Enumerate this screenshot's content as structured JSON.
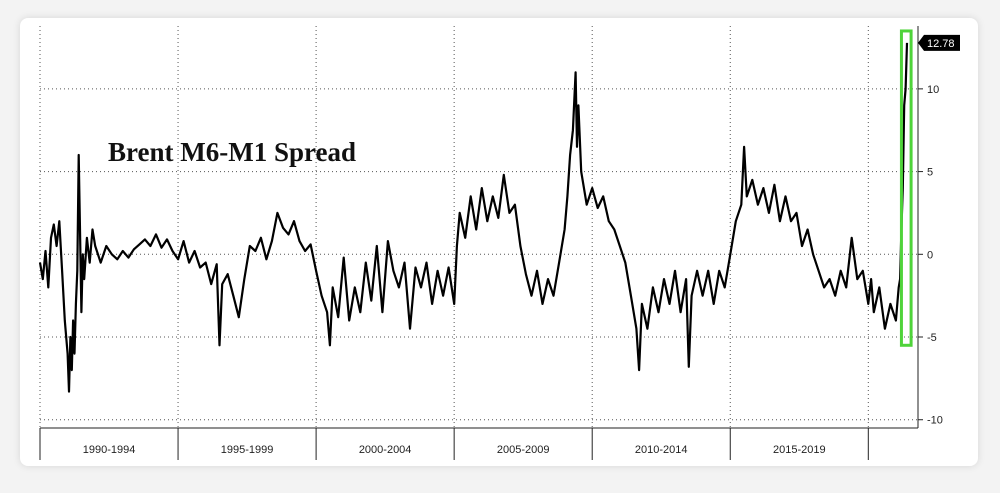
{
  "chart_data": {
    "type": "line",
    "title": "Brent M6-M1 Spread",
    "xlabel": "",
    "ylabel": "",
    "xlim": [
      1989,
      2020.8
    ],
    "ylim": [
      -10.5,
      13.8
    ],
    "y_ticks": [
      10,
      5,
      0,
      -5,
      -10
    ],
    "y_tick_labels": [
      "10",
      "5",
      "0",
      "-5",
      "-10"
    ],
    "x_periods": [
      {
        "label": "1990-1994",
        "start": 1989.0,
        "end": 1994.0
      },
      {
        "label": "1995-1999",
        "start": 1994.0,
        "end": 1999.0
      },
      {
        "label": "2000-2004",
        "start": 1999.0,
        "end": 2004.0
      },
      {
        "label": "2005-2009",
        "start": 2004.0,
        "end": 2009.0
      },
      {
        "label": "2010-2014",
        "start": 2009.0,
        "end": 2014.0
      },
      {
        "label": "2015-2019",
        "start": 2014.0,
        "end": 2019.0
      }
    ],
    "grid": true,
    "legend": "none",
    "line_color": "#000000",
    "highlight_color": "#4fd33a",
    "highlight_range": {
      "x": [
        2020.2,
        2020.55
      ],
      "y": [
        -5.5,
        13.5
      ]
    },
    "last_value_label": "12.78",
    "series": [
      {
        "points": [
          [
            1989.0,
            -0.5
          ],
          [
            1989.1,
            -1.5
          ],
          [
            1989.2,
            0.2
          ],
          [
            1989.3,
            -2.0
          ],
          [
            1989.4,
            1.0
          ],
          [
            1989.5,
            1.8
          ],
          [
            1989.6,
            0.5
          ],
          [
            1989.7,
            2.0
          ],
          [
            1989.8,
            -1.0
          ],
          [
            1989.9,
            -4.0
          ],
          [
            1990.0,
            -6.0
          ],
          [
            1990.05,
            -8.3
          ],
          [
            1990.1,
            -5.0
          ],
          [
            1990.15,
            -7.0
          ],
          [
            1990.2,
            -4.0
          ],
          [
            1990.25,
            -6.0
          ],
          [
            1990.3,
            -3.0
          ],
          [
            1990.35,
            -1.0
          ],
          [
            1990.4,
            6.0
          ],
          [
            1990.45,
            1.5
          ],
          [
            1990.5,
            -3.5
          ],
          [
            1990.55,
            0.0
          ],
          [
            1990.6,
            -1.5
          ],
          [
            1990.7,
            1.0
          ],
          [
            1990.8,
            -0.5
          ],
          [
            1990.9,
            1.5
          ],
          [
            1991.0,
            0.5
          ],
          [
            1991.2,
            -0.5
          ],
          [
            1991.4,
            0.5
          ],
          [
            1991.6,
            0.0
          ],
          [
            1991.8,
            -0.3
          ],
          [
            1992.0,
            0.2
          ],
          [
            1992.2,
            -0.2
          ],
          [
            1992.4,
            0.3
          ],
          [
            1992.6,
            0.6
          ],
          [
            1992.8,
            0.9
          ],
          [
            1993.0,
            0.5
          ],
          [
            1993.2,
            1.2
          ],
          [
            1993.4,
            0.4
          ],
          [
            1993.6,
            0.9
          ],
          [
            1993.8,
            0.2
          ],
          [
            1994.0,
            -0.3
          ],
          [
            1994.2,
            0.8
          ],
          [
            1994.4,
            -0.5
          ],
          [
            1994.6,
            0.2
          ],
          [
            1994.8,
            -0.8
          ],
          [
            1995.0,
            -0.5
          ],
          [
            1995.2,
            -1.8
          ],
          [
            1995.4,
            -0.6
          ],
          [
            1995.5,
            -5.5
          ],
          [
            1995.6,
            -1.8
          ],
          [
            1995.8,
            -1.2
          ],
          [
            1996.0,
            -2.5
          ],
          [
            1996.2,
            -3.8
          ],
          [
            1996.4,
            -1.5
          ],
          [
            1996.6,
            0.5
          ],
          [
            1996.8,
            0.2
          ],
          [
            1997.0,
            1.0
          ],
          [
            1997.2,
            -0.3
          ],
          [
            1997.4,
            0.8
          ],
          [
            1997.6,
            2.5
          ],
          [
            1997.8,
            1.6
          ],
          [
            1998.0,
            1.2
          ],
          [
            1998.2,
            2.0
          ],
          [
            1998.4,
            0.8
          ],
          [
            1998.6,
            0.2
          ],
          [
            1998.8,
            0.6
          ],
          [
            1999.0,
            -1.0
          ],
          [
            1999.2,
            -2.5
          ],
          [
            1999.4,
            -3.5
          ],
          [
            1999.5,
            -5.5
          ],
          [
            1999.6,
            -2.0
          ],
          [
            1999.8,
            -3.8
          ],
          [
            2000.0,
            -0.2
          ],
          [
            2000.2,
            -4.0
          ],
          [
            2000.4,
            -2.0
          ],
          [
            2000.6,
            -3.5
          ],
          [
            2000.8,
            -0.5
          ],
          [
            2001.0,
            -2.8
          ],
          [
            2001.2,
            0.5
          ],
          [
            2001.4,
            -3.5
          ],
          [
            2001.6,
            0.8
          ],
          [
            2001.8,
            -1.0
          ],
          [
            2002.0,
            -2.0
          ],
          [
            2002.2,
            -0.5
          ],
          [
            2002.4,
            -4.5
          ],
          [
            2002.6,
            -0.8
          ],
          [
            2002.8,
            -2.0
          ],
          [
            2003.0,
            -0.5
          ],
          [
            2003.2,
            -3.0
          ],
          [
            2003.4,
            -1.0
          ],
          [
            2003.6,
            -2.5
          ],
          [
            2003.8,
            -0.8
          ],
          [
            2004.0,
            -3.0
          ],
          [
            2004.1,
            0.5
          ],
          [
            2004.2,
            2.5
          ],
          [
            2004.4,
            1.0
          ],
          [
            2004.6,
            3.5
          ],
          [
            2004.8,
            1.5
          ],
          [
            2005.0,
            4.0
          ],
          [
            2005.2,
            2.0
          ],
          [
            2005.4,
            3.5
          ],
          [
            2005.6,
            2.2
          ],
          [
            2005.8,
            4.8
          ],
          [
            2006.0,
            2.5
          ],
          [
            2006.2,
            3.0
          ],
          [
            2006.4,
            0.5
          ],
          [
            2006.6,
            -1.2
          ],
          [
            2006.8,
            -2.5
          ],
          [
            2007.0,
            -1.0
          ],
          [
            2007.2,
            -3.0
          ],
          [
            2007.4,
            -1.5
          ],
          [
            2007.6,
            -2.5
          ],
          [
            2007.8,
            -0.5
          ],
          [
            2008.0,
            1.5
          ],
          [
            2008.1,
            3.5
          ],
          [
            2008.2,
            6.0
          ],
          [
            2008.3,
            7.5
          ],
          [
            2008.4,
            11.0
          ],
          [
            2008.45,
            6.5
          ],
          [
            2008.5,
            9.0
          ],
          [
            2008.6,
            5.0
          ],
          [
            2008.8,
            3.0
          ],
          [
            2009.0,
            4.0
          ],
          [
            2009.2,
            2.8
          ],
          [
            2009.4,
            3.5
          ],
          [
            2009.6,
            2.0
          ],
          [
            2009.8,
            1.5
          ],
          [
            2010.0,
            0.5
          ],
          [
            2010.2,
            -0.5
          ],
          [
            2010.4,
            -2.5
          ],
          [
            2010.6,
            -4.5
          ],
          [
            2010.7,
            -7.0
          ],
          [
            2010.8,
            -3.0
          ],
          [
            2011.0,
            -4.5
          ],
          [
            2011.2,
            -2.0
          ],
          [
            2011.4,
            -3.5
          ],
          [
            2011.6,
            -1.5
          ],
          [
            2011.8,
            -3.0
          ],
          [
            2012.0,
            -1.0
          ],
          [
            2012.2,
            -3.5
          ],
          [
            2012.4,
            -1.5
          ],
          [
            2012.5,
            -6.8
          ],
          [
            2012.6,
            -2.5
          ],
          [
            2012.8,
            -1.0
          ],
          [
            2013.0,
            -2.5
          ],
          [
            2013.2,
            -1.0
          ],
          [
            2013.4,
            -3.0
          ],
          [
            2013.6,
            -1.0
          ],
          [
            2013.8,
            -2.0
          ],
          [
            2014.0,
            0.0
          ],
          [
            2014.2,
            2.0
          ],
          [
            2014.4,
            3.0
          ],
          [
            2014.5,
            6.5
          ],
          [
            2014.6,
            3.5
          ],
          [
            2014.8,
            4.5
          ],
          [
            2015.0,
            3.0
          ],
          [
            2015.2,
            4.0
          ],
          [
            2015.4,
            2.5
          ],
          [
            2015.6,
            4.2
          ],
          [
            2015.8,
            2.0
          ],
          [
            2016.0,
            3.5
          ],
          [
            2016.2,
            2.0
          ],
          [
            2016.4,
            2.5
          ],
          [
            2016.6,
            0.5
          ],
          [
            2016.8,
            1.5
          ],
          [
            2017.0,
            0.0
          ],
          [
            2017.2,
            -1.0
          ],
          [
            2017.4,
            -2.0
          ],
          [
            2017.6,
            -1.5
          ],
          [
            2017.8,
            -2.5
          ],
          [
            2018.0,
            -1.0
          ],
          [
            2018.2,
            -2.0
          ],
          [
            2018.4,
            1.0
          ],
          [
            2018.6,
            -1.5
          ],
          [
            2018.8,
            -1.0
          ],
          [
            2019.0,
            -3.0
          ],
          [
            2019.1,
            -1.5
          ],
          [
            2019.2,
            -3.5
          ],
          [
            2019.4,
            -2.0
          ],
          [
            2019.6,
            -4.5
          ],
          [
            2019.8,
            -3.0
          ],
          [
            2020.0,
            -4.0
          ],
          [
            2020.1,
            -2.0
          ],
          [
            2020.15,
            -1.5
          ],
          [
            2020.2,
            1.5
          ],
          [
            2020.25,
            4.0
          ],
          [
            2020.3,
            9.0
          ],
          [
            2020.35,
            10.0
          ],
          [
            2020.4,
            12.78
          ]
        ]
      }
    ]
  }
}
